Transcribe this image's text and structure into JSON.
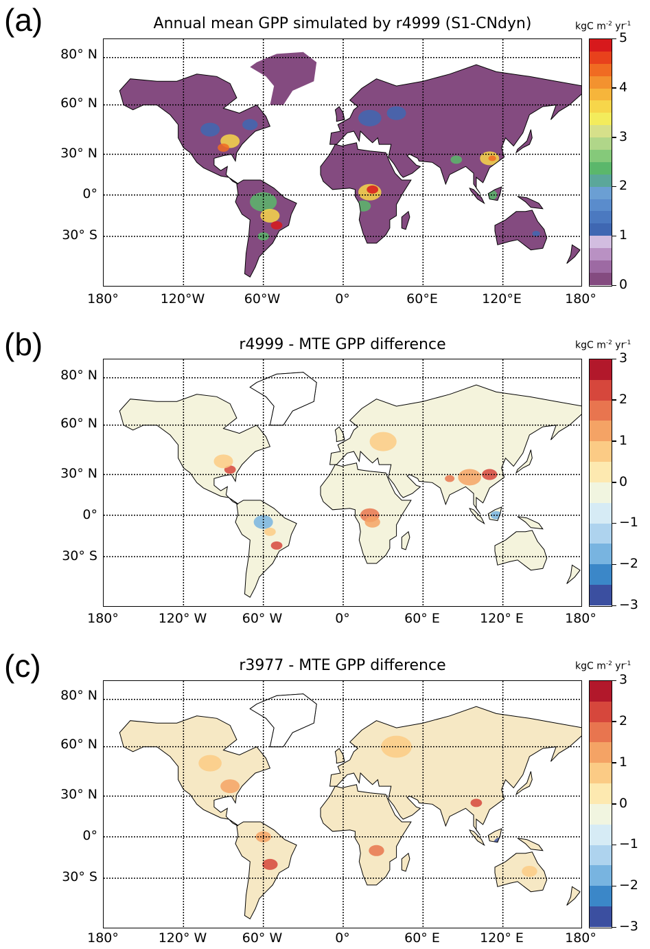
{
  "panels": [
    {
      "letter": "(a)",
      "title": "Annual mean GPP simulated by r4999 (S1-CNdyn)",
      "unit": "kgC m",
      "unit_sup1": "-2",
      "unit_mid": " yr",
      "unit_sup2": "-1",
      "lat_labels": [
        "80° N",
        "60° N",
        "30° N",
        "0°",
        "30° S"
      ],
      "lon_labels": [
        "180°",
        "120°W",
        "60°W",
        "0°",
        "60°E",
        "120°E",
        "180°"
      ],
      "colorbar_labels": [
        "5",
        "4",
        "3",
        "2",
        "1",
        "0"
      ],
      "colorbar_colors": [
        "#d7191c",
        "#e8411c",
        "#f06b22",
        "#f3922f",
        "#f6b53b",
        "#f7d64a",
        "#f3ec5c",
        "#d6e08a",
        "#b0d689",
        "#85c97a",
        "#5bb76b",
        "#5ba79a",
        "#6b9fd3",
        "#5a8ccc",
        "#4b79c0",
        "#3f67b2",
        "#d2bde0",
        "#b991c3",
        "#9d6aa3",
        "#844b80"
      ],
      "land_color": "#844b80"
    },
    {
      "letter": "(b)",
      "title": "r4999 - MTE GPP difference",
      "unit": "kgC m",
      "unit_sup1": "-2",
      "unit_mid": " yr",
      "unit_sup2": "-1",
      "lat_labels": [
        "80° N",
        "60° N",
        "30° N",
        "0°",
        "30° S"
      ],
      "lon_labels": [
        "180°",
        "120° W",
        "60° W",
        "0°",
        "60° E",
        "120° E",
        "180°"
      ],
      "colorbar_labels": [
        "3",
        "2",
        "1",
        "0",
        "−1",
        "−2",
        "−3"
      ],
      "colorbar_colors": [
        "#b2182b",
        "#d6473c",
        "#e8754f",
        "#f4a365",
        "#fbcb85",
        "#fde9b0",
        "#f1f5e0",
        "#d6ebf5",
        "#aed3ee",
        "#78b4e0",
        "#3b87c8",
        "#3b4fa0"
      ],
      "land_color": "#f4f3dc"
    },
    {
      "letter": "(c)",
      "title": "r3977 - MTE GPP difference",
      "unit": "kgC m",
      "unit_sup1": "-2",
      "unit_mid": " yr",
      "unit_sup2": "-1",
      "lat_labels": [
        "80° N",
        "60° N",
        "30° N",
        "0°",
        "30° S"
      ],
      "lon_labels": [
        "180°",
        "120° W",
        "60° W",
        "0°",
        "60° E",
        "120° E",
        "180°"
      ],
      "colorbar_labels": [
        "3",
        "2",
        "1",
        "0",
        "−1",
        "−2",
        "−3"
      ],
      "colorbar_colors": [
        "#b2182b",
        "#d6473c",
        "#e8754f",
        "#f4a365",
        "#fbcb85",
        "#fde9b0",
        "#f1f5e0",
        "#d6ebf5",
        "#aed3ee",
        "#78b4e0",
        "#3b87c8",
        "#3b4fa0"
      ],
      "land_color": "#f6e8c4"
    }
  ]
}
